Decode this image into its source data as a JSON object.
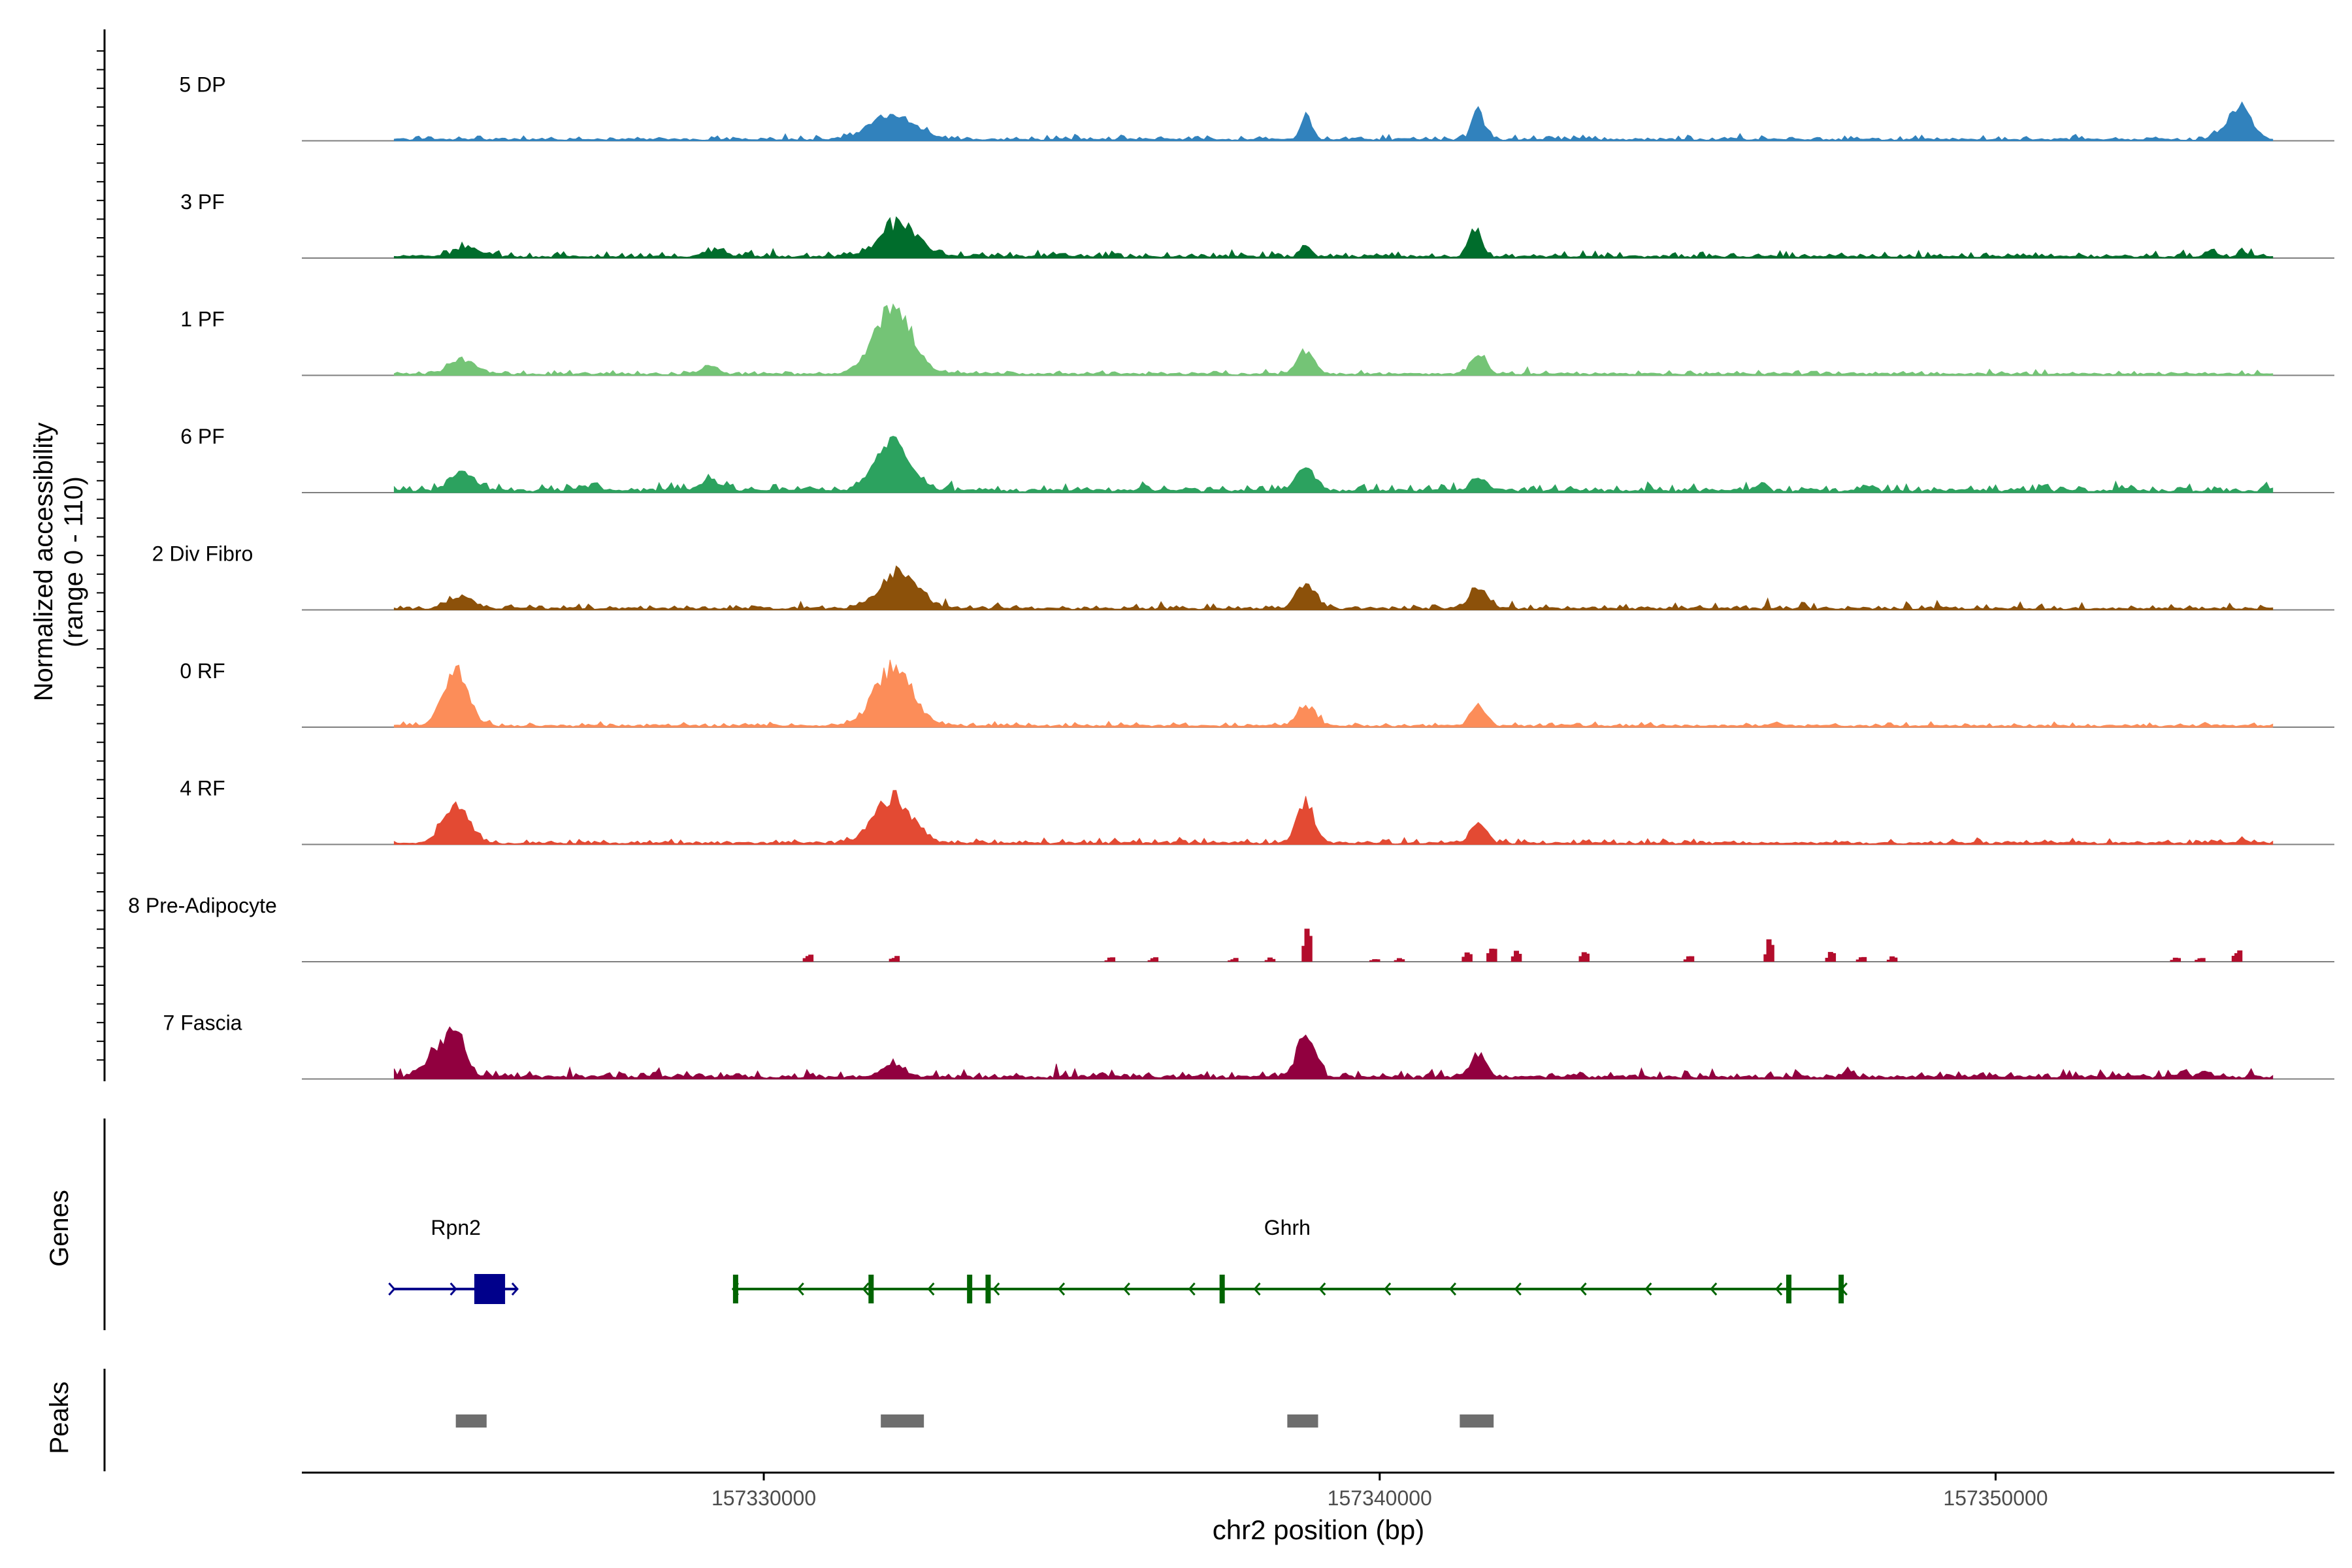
{
  "chart_data": {
    "type": "area",
    "title": "",
    "ylabel": "Normalized accessibility\n(range 0 - 110)",
    "ylabel_lines": [
      "Normalized accessibility",
      "(range 0 - 110)"
    ],
    "ylim": [
      0,
      110
    ],
    "xlabel": "chr2 position (bp)",
    "xlim": [
      157322500,
      157355500
    ],
    "x_ticks": [
      157330000,
      157340000,
      157350000
    ],
    "x_tick_labels": [
      "157330000",
      "157340000",
      "157350000"
    ],
    "grid": false,
    "legend": "none",
    "series": [
      {
        "name": "5 DP",
        "color": "#3182bd",
        "baseline": 2,
        "noise": 3,
        "noise_density": 0.45,
        "peaks": [
          [
            157332100,
            360,
            30
          ],
          [
            157338800,
            80,
            30
          ],
          [
            157341600,
            100,
            35
          ],
          [
            157353950,
            190,
            42
          ]
        ]
      },
      {
        "name": "3 PF",
        "color": "#006d2c",
        "baseline": 2,
        "noise": 4,
        "noise_density": 0.5,
        "peaks": [
          [
            157325200,
            200,
            12
          ],
          [
            157329200,
            180,
            7
          ],
          [
            157332200,
            300,
            40
          ],
          [
            157338800,
            80,
            15
          ],
          [
            157341550,
            100,
            35
          ],
          [
            157353500,
            70,
            8
          ],
          [
            157354000,
            60,
            8
          ]
        ]
      },
      {
        "name": "1 PF",
        "color": "#74c476",
        "baseline": 2,
        "noise": 2.5,
        "noise_density": 0.45,
        "peaks": [
          [
            157325100,
            200,
            18
          ],
          [
            157329100,
            150,
            8
          ],
          [
            157332100,
            300,
            80
          ],
          [
            157338800,
            140,
            28
          ],
          [
            157341600,
            120,
            25
          ]
        ]
      },
      {
        "name": "6 PF",
        "color": "#2ca25f",
        "baseline": 3,
        "noise": 5,
        "noise_density": 0.55,
        "peaks": [
          [
            157325100,
            200,
            20
          ],
          [
            157327200,
            150,
            6
          ],
          [
            157329100,
            150,
            12
          ],
          [
            157332100,
            280,
            55
          ],
          [
            157338800,
            140,
            28
          ],
          [
            157341600,
            120,
            16
          ],
          [
            157346200,
            70,
            8
          ],
          [
            157352200,
            50,
            6
          ]
        ]
      },
      {
        "name": "2 Div Fibro",
        "color": "#8c510a",
        "baseline": 2,
        "noise": 4,
        "noise_density": 0.5,
        "peaks": [
          [
            157325100,
            200,
            14
          ],
          [
            157332200,
            300,
            45
          ],
          [
            157338800,
            150,
            30
          ],
          [
            157341600,
            140,
            25
          ]
        ]
      },
      {
        "name": "0 RF",
        "color": "#fc8d59",
        "baseline": 2,
        "noise": 2.5,
        "noise_density": 0.45,
        "peaks": [
          [
            157325000,
            200,
            65
          ],
          [
            157332100,
            300,
            70
          ],
          [
            157338800,
            140,
            25
          ],
          [
            157341600,
            120,
            25
          ],
          [
            157346400,
            80,
            4
          ],
          [
            157353400,
            60,
            4
          ]
        ]
      },
      {
        "name": "4 RF",
        "color": "#e34a33",
        "baseline": 2,
        "noise": 3,
        "noise_density": 0.5,
        "peaks": [
          [
            157325000,
            200,
            50
          ],
          [
            157332100,
            300,
            55
          ],
          [
            157338800,
            140,
            50
          ],
          [
            157341600,
            120,
            25
          ],
          [
            157354000,
            60,
            5
          ]
        ]
      },
      {
        "name": "8 Pre-Adipocyte",
        "color": "#b30d2c",
        "baseline": 0,
        "noise": 0,
        "noise_density": 0,
        "sparse": [
          [
            157330700,
            10
          ],
          [
            157332100,
            8
          ],
          [
            157335600,
            6
          ],
          [
            157336300,
            6
          ],
          [
            157337600,
            5
          ],
          [
            157338200,
            6
          ],
          [
            157338800,
            55
          ],
          [
            157339900,
            5
          ],
          [
            157340300,
            5
          ],
          [
            157341400,
            15
          ],
          [
            157341800,
            25
          ],
          [
            157342200,
            15
          ],
          [
            157343300,
            15
          ],
          [
            157345000,
            10
          ],
          [
            157346300,
            30
          ],
          [
            157347300,
            15
          ],
          [
            157347800,
            8
          ],
          [
            157348300,
            7
          ],
          [
            157352900,
            6
          ],
          [
            157353300,
            6
          ],
          [
            157353900,
            18
          ]
        ]
      },
      {
        "name": "7 Fascia",
        "color": "#91003f",
        "baseline": 3,
        "noise": 5,
        "noise_density": 0.55,
        "peaks": [
          [
            157324800,
            250,
            30
          ],
          [
            157325000,
            140,
            35
          ],
          [
            157332100,
            180,
            15
          ],
          [
            157338800,
            140,
            55
          ],
          [
            157341600,
            130,
            25
          ],
          [
            157347600,
            60,
            8
          ],
          [
            157353400,
            60,
            8
          ]
        ]
      }
    ],
    "genes": [
      {
        "name": "Rpn2",
        "strand": "+",
        "color": "#00008b",
        "start": 157324000,
        "end": 157326000,
        "exons": [
          [
            157325300,
            157325800
          ]
        ]
      },
      {
        "name": "Ghrh",
        "strand": "-",
        "color": "#006400",
        "start": 157329500,
        "end": 157347500,
        "exons": [
          [
            157329500,
            157329550
          ],
          [
            157331700,
            157331750
          ],
          [
            157333300,
            157333350
          ],
          [
            157333600,
            157333650
          ],
          [
            157337400,
            157337430
          ],
          [
            157346600,
            157346650
          ],
          [
            157347450,
            157347480
          ]
        ]
      }
    ],
    "peaks": [
      [
        157325000,
        157325500
      ],
      [
        157331900,
        157332600
      ],
      [
        157338500,
        157339000
      ],
      [
        157341300,
        157341850
      ]
    ],
    "panel_labels": {
      "genes": "Genes",
      "peaks": "Peaks"
    }
  }
}
